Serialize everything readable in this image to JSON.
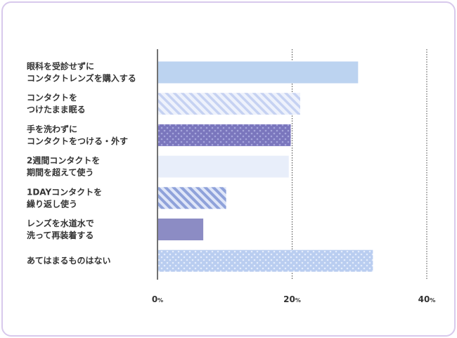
{
  "chart_data": {
    "type": "bar",
    "orientation": "horizontal",
    "categories": [
      [
        "眼科を受診せずに",
        "コンタクトレンズを購入する"
      ],
      [
        "コンタクトを",
        "つけたまま眠る"
      ],
      [
        "手を洗わずに",
        "コンタクトをつける・外す"
      ],
      [
        "2週間コンタクトを",
        "期間を超えて使う"
      ],
      [
        "1DAYコンタクトを",
        "繰り返し使う"
      ],
      [
        "レンズを水道水で",
        "洗って再装着する"
      ],
      [
        "あてはまるものはない"
      ]
    ],
    "values": [
      29.8,
      21.2,
      19.8,
      19.5,
      10.2,
      6.8,
      32.0
    ],
    "xlim": [
      0,
      40
    ],
    "xticks": [
      0,
      20,
      40
    ],
    "xtick_labels": [
      "0",
      "20",
      "40"
    ],
    "unit": "%",
    "grid": "dotted vertical lines at 20 and 40",
    "bar_colors": [
      "#bcd3f0",
      "#c8d4f2",
      "#7c79bf",
      "#e8eefa",
      "#a9b9e6",
      "#8c8cc4",
      "#b8cdf0"
    ],
    "bar_patterns": [
      "solid",
      "diagonal-stripes",
      "dots",
      "solid",
      "diagonal-stripes",
      "solid",
      "dots"
    ]
  }
}
